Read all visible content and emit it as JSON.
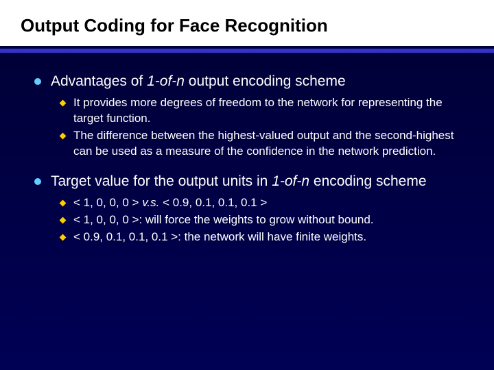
{
  "title": "Output Coding for Face Recognition",
  "bullets": {
    "main1_prefix": "Advantages of ",
    "main1_italic": "1-of-n",
    "main1_suffix": " output encoding scheme",
    "sub1a": "It provides more degrees of freedom to the network for representing the target function.",
    "sub1b": "The difference between the highest-valued output and the second-highest can be used as a measure of the confidence in the network prediction.",
    "main2_prefix": "Target value for the output units in ",
    "main2_italic": "1-of-n",
    "main2_suffix": " encoding scheme",
    "sub2a_prefix": "< 1, 0, 0, 0 >  ",
    "sub2a_vs": "v.s.",
    "sub2a_suffix": " < 0.9, 0.1, 0.1, 0.1 >",
    "sub2b": "< 1, 0, 0, 0 >: will force the weights to grow without bound.",
    "sub2c": "< 0.9, 0.1, 0.1, 0.1 >: the network will have finite weights."
  },
  "colors": {
    "title_bg": "#ffffff",
    "title_text": "#000000",
    "underline": "#3333cc",
    "body_bg_top": "#000033",
    "body_bg_bottom": "#000055",
    "main_dot": "#66ccff",
    "sub_diamond": "#ffcc00",
    "body_text": "#ffffff"
  },
  "typography": {
    "title_fontsize": 26,
    "main_fontsize": 21,
    "sub_fontsize": 17,
    "font_family": "Verdana"
  }
}
